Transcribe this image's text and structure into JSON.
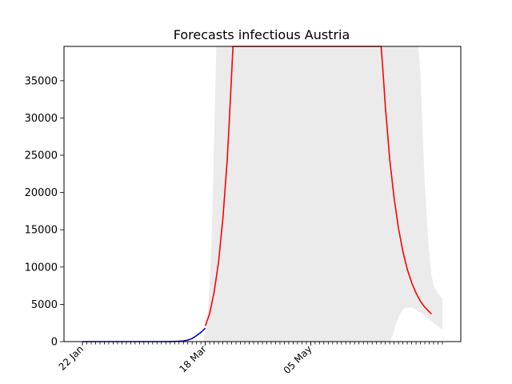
{
  "chart_data": {
    "type": "line",
    "title": "Forecasts infectious Austria",
    "xlabel": "",
    "ylabel": "",
    "x_tick_labels": [
      "22 Jan",
      "18 Mar",
      "05 May"
    ],
    "x_tick_days": [
      0,
      56,
      104
    ],
    "day_range": [
      0,
      164
    ],
    "ylim": [
      0,
      39600
    ],
    "y_ticks": [
      0,
      5000,
      10000,
      15000,
      20000,
      25000,
      30000,
      35000
    ],
    "grid": false,
    "series": [
      {
        "kind": "line",
        "color": "#0000cc",
        "points": [
          [
            0,
            0
          ],
          [
            10,
            0
          ],
          [
            20,
            0
          ],
          [
            30,
            0
          ],
          [
            35,
            0
          ],
          [
            40,
            10
          ],
          [
            42,
            20
          ],
          [
            44,
            40
          ],
          [
            46,
            90
          ],
          [
            48,
            200
          ],
          [
            50,
            420
          ],
          [
            52,
            800
          ],
          [
            54,
            1250
          ],
          [
            56,
            1800
          ]
        ]
      },
      {
        "kind": "line",
        "color": "#ff0000",
        "points": [
          [
            56,
            2100
          ],
          [
            58,
            3800
          ],
          [
            60,
            6600
          ],
          [
            62,
            10600
          ],
          [
            64,
            16500
          ],
          [
            66,
            24500
          ],
          [
            67,
            30000
          ],
          [
            68,
            36000
          ],
          [
            68.6,
            39600
          ],
          [
            136.1,
            39600
          ],
          [
            137,
            36000
          ],
          [
            138,
            31500
          ],
          [
            140,
            24500
          ],
          [
            142,
            19300
          ],
          [
            144,
            15200
          ],
          [
            146,
            12100
          ],
          [
            148,
            9700
          ],
          [
            150,
            7900
          ],
          [
            152,
            6500
          ],
          [
            154,
            5400
          ],
          [
            156,
            4600
          ],
          [
            159,
            3700
          ]
        ]
      },
      {
        "kind": "band",
        "color": "#ebebeb",
        "upper": [
          [
            55,
            0
          ],
          [
            56,
            1500
          ],
          [
            57,
            3500
          ],
          [
            58,
            7500
          ],
          [
            59,
            15000
          ],
          [
            60,
            27000
          ],
          [
            61,
            39600
          ],
          [
            153,
            39600
          ],
          [
            154,
            36000
          ],
          [
            155,
            28000
          ],
          [
            156,
            21000
          ],
          [
            157,
            16000
          ],
          [
            158,
            12000
          ],
          [
            159,
            9000
          ],
          [
            160,
            7500
          ],
          [
            162,
            6500
          ],
          [
            164,
            5800
          ]
        ],
        "lower": [
          [
            55,
            0
          ],
          [
            140,
            0
          ],
          [
            141,
            500
          ],
          [
            142,
            1500
          ],
          [
            143,
            2500
          ],
          [
            144,
            3300
          ],
          [
            145,
            3900
          ],
          [
            146,
            4300
          ],
          [
            147,
            4550
          ],
          [
            148,
            4600
          ],
          [
            150,
            4550
          ],
          [
            152,
            4300
          ],
          [
            155,
            3700
          ],
          [
            158,
            3000
          ],
          [
            161,
            2300
          ],
          [
            164,
            1600
          ]
        ]
      }
    ]
  }
}
